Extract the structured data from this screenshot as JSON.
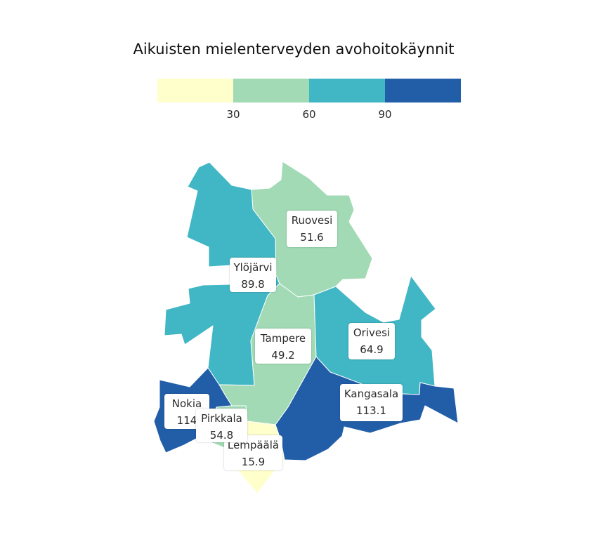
{
  "title": "Aikuisten mielenterveyden avohoitokäynnit",
  "legend": {
    "breaks": [
      30,
      60,
      90
    ],
    "tick_labels": [
      "30",
      "60",
      "90"
    ],
    "colors": [
      "#ffffcc",
      "#a1dab4",
      "#41b6c4",
      "#225ea8"
    ]
  },
  "regions": [
    {
      "name": "Ruovesi",
      "value": 51.6
    },
    {
      "name": "Ylöjärvi",
      "value": 89.8
    },
    {
      "name": "Tampere",
      "value": 49.2
    },
    {
      "name": "Orivesi",
      "value": 64.9
    },
    {
      "name": "Kangasala",
      "value": 113.1
    },
    {
      "name": "Nokia",
      "value": 114
    },
    {
      "name": "Lempäälä",
      "value": 15.9
    },
    {
      "name": "Pirkkala",
      "value": 54.8
    }
  ]
}
